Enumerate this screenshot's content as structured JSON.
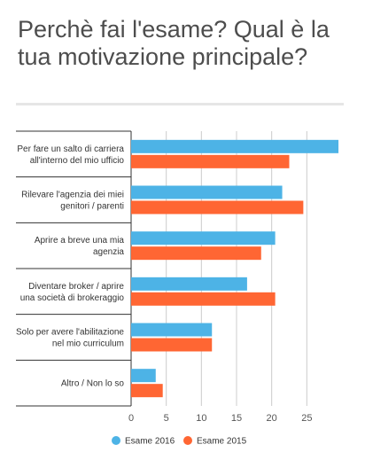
{
  "chart_data": {
    "type": "bar",
    "orientation": "horizontal",
    "title": "Perchè fai l'esame? Qual è la tua motivazione principale?",
    "categories": [
      [
        "Per fare un salto di carriera",
        "all'interno del mio ufficio"
      ],
      [
        "Rilevare l'agenzia dei miei",
        "genitori / parenti"
      ],
      [
        "Aprire a breve una mia",
        "agenzia"
      ],
      [
        "Diventare broker / aprire",
        "una società di brokeraggio"
      ],
      [
        "Solo per avere l'abilitazione",
        "nel mio curriculum"
      ],
      [
        "Altro / Non lo so"
      ]
    ],
    "series": [
      {
        "name": "Esame 2016",
        "color": "#4db3e6",
        "values": [
          29.5,
          21.5,
          20.5,
          16.5,
          11.5,
          3.5
        ]
      },
      {
        "name": "Esame 2015",
        "color": "#ff6633",
        "values": [
          22.5,
          24.5,
          18.5,
          20.5,
          11.5,
          4.5
        ]
      }
    ],
    "xlim": [
      0,
      30
    ],
    "xticks": [
      0,
      5,
      10,
      15,
      20,
      25
    ],
    "grid": true,
    "legend": "bottom"
  }
}
